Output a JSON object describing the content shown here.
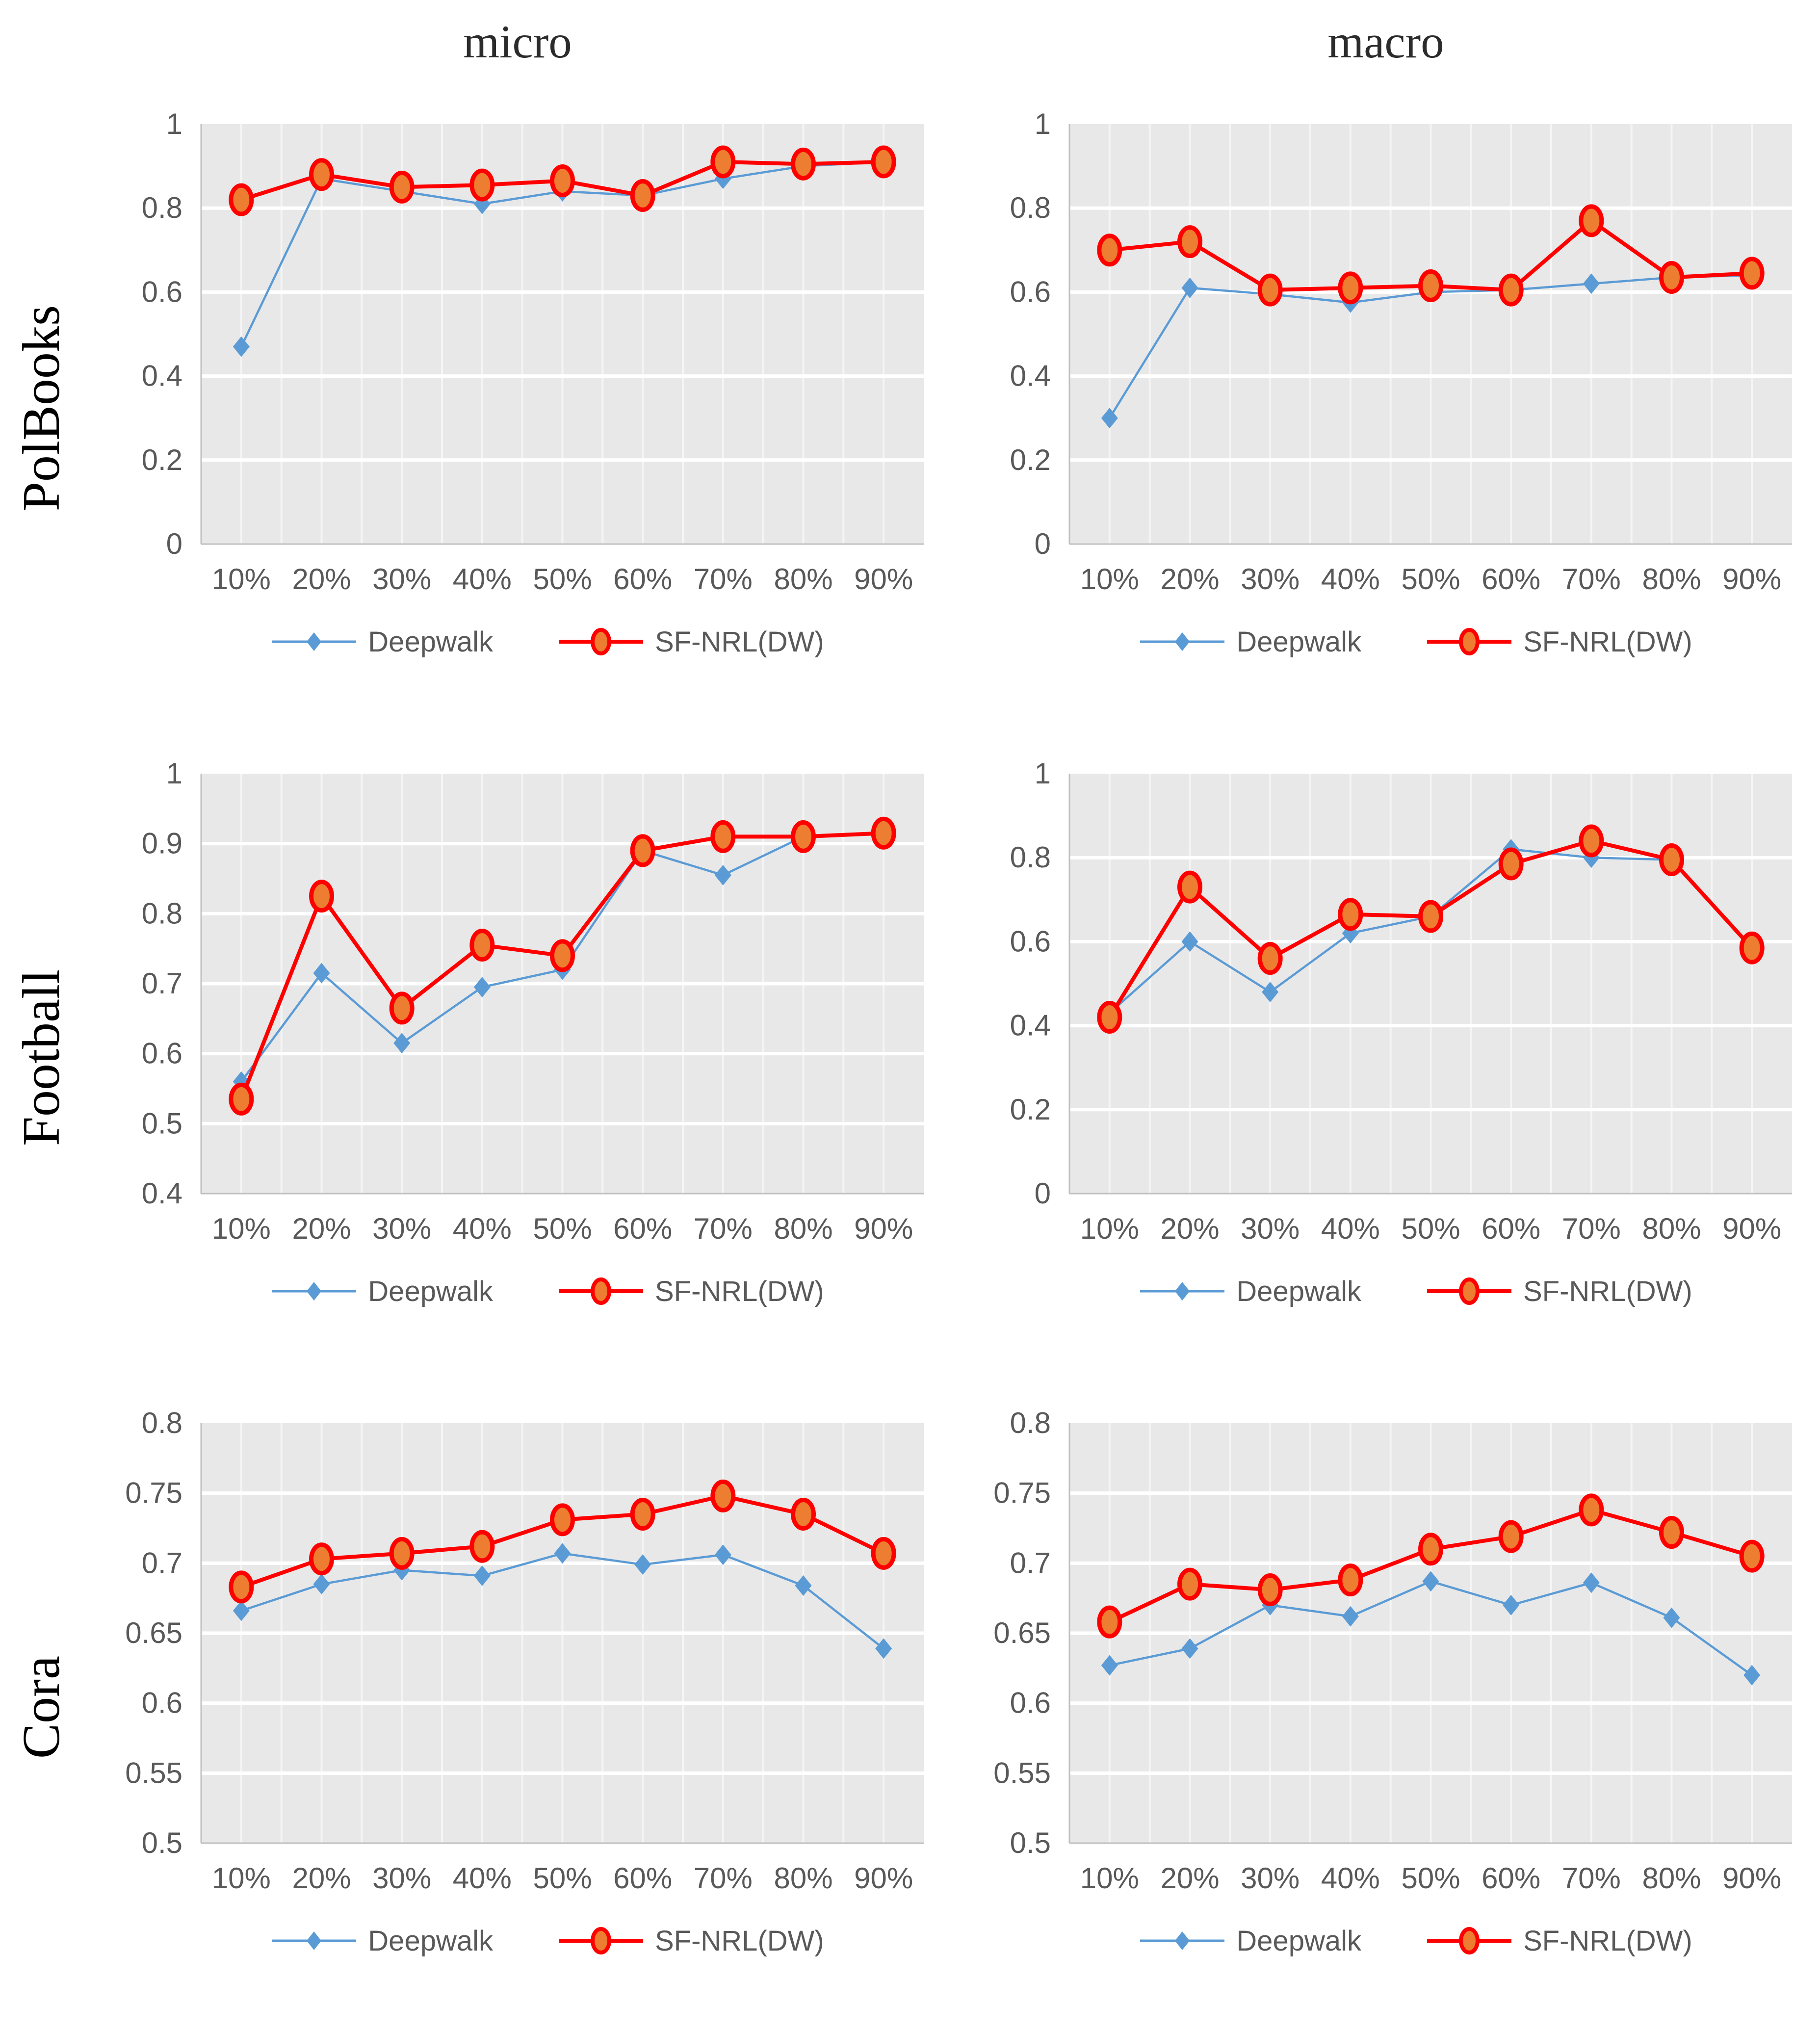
{
  "page": {
    "column_titles": [
      "micro",
      "macro"
    ],
    "row_labels": [
      "PolBooks",
      "Football",
      "Cora"
    ]
  },
  "colors": {
    "plot_bg": "#e8e8e8",
    "vgrid": "#f5f5f5",
    "hgrid": "#ffffff",
    "axis": "#c0c0c0",
    "tick": "#595959",
    "deepwalk_blue": "#5B9BD5",
    "sfnrl_red": "#FF0000",
    "sfnrl_fill": "#ED7D31"
  },
  "chart_data": [
    {
      "id": "polbooks-micro",
      "type": "line",
      "dataset": "PolBooks",
      "metric": "micro",
      "categories": [
        "10%",
        "20%",
        "30%",
        "40%",
        "50%",
        "60%",
        "70%",
        "80%",
        "90%"
      ],
      "ylim": [
        0,
        1
      ],
      "yticks": [
        1,
        0.8,
        0.6,
        0.4,
        0.2,
        0
      ],
      "ytick_labels": [
        "1",
        "0.8",
        "0.6",
        "0.4",
        "0.2",
        "0"
      ],
      "grid": "on",
      "legend_position": "bottom",
      "series": [
        {
          "name": "Deepwalk",
          "marker": "diamond",
          "color": "#5B9BD5",
          "values": [
            0.47,
            0.87,
            0.84,
            0.81,
            0.84,
            0.83,
            0.87,
            0.9,
            0.91
          ]
        },
        {
          "name": "SF-NRL(DW)",
          "marker": "circle",
          "color": "#FF0000",
          "fill": "#ED7D31",
          "values": [
            0.82,
            0.88,
            0.85,
            0.855,
            0.865,
            0.83,
            0.91,
            0.905,
            0.91
          ]
        }
      ]
    },
    {
      "id": "polbooks-macro",
      "type": "line",
      "dataset": "PolBooks",
      "metric": "macro",
      "categories": [
        "10%",
        "20%",
        "30%",
        "40%",
        "50%",
        "60%",
        "70%",
        "80%",
        "90%"
      ],
      "ylim": [
        0,
        1
      ],
      "yticks": [
        1,
        0.8,
        0.6,
        0.4,
        0.2,
        0
      ],
      "ytick_labels": [
        "1",
        "0.8",
        "0.6",
        "0.4",
        "0.2",
        "0"
      ],
      "grid": "on",
      "legend_position": "bottom",
      "series": [
        {
          "name": "Deepwalk",
          "marker": "diamond",
          "color": "#5B9BD5",
          "values": [
            0.3,
            0.61,
            0.595,
            0.575,
            0.6,
            0.605,
            0.62,
            0.635,
            0.64
          ]
        },
        {
          "name": "SF-NRL(DW)",
          "marker": "circle",
          "color": "#FF0000",
          "fill": "#ED7D31",
          "values": [
            0.7,
            0.72,
            0.605,
            0.61,
            0.615,
            0.605,
            0.77,
            0.635,
            0.645
          ]
        }
      ]
    },
    {
      "id": "football-micro",
      "type": "line",
      "dataset": "Football",
      "metric": "micro",
      "categories": [
        "10%",
        "20%",
        "30%",
        "40%",
        "50%",
        "60%",
        "70%",
        "80%",
        "90%"
      ],
      "ylim": [
        0.4,
        1
      ],
      "yticks": [
        1,
        0.9,
        0.8,
        0.7,
        0.6,
        0.5,
        0.4
      ],
      "ytick_labels": [
        "1",
        "0.9",
        "0.8",
        "0.7",
        "0.6",
        "0.5",
        "0.4"
      ],
      "grid": "on",
      "legend_position": "bottom",
      "series": [
        {
          "name": "Deepwalk",
          "marker": "diamond",
          "color": "#5B9BD5",
          "values": [
            0.56,
            0.715,
            0.615,
            0.695,
            0.72,
            0.89,
            0.855,
            0.91,
            0.915
          ]
        },
        {
          "name": "SF-NRL(DW)",
          "marker": "circle",
          "color": "#FF0000",
          "fill": "#ED7D31",
          "values": [
            0.535,
            0.825,
            0.665,
            0.755,
            0.74,
            0.89,
            0.91,
            0.91,
            0.915
          ]
        }
      ]
    },
    {
      "id": "football-macro",
      "type": "line",
      "dataset": "Football",
      "metric": "macro",
      "categories": [
        "10%",
        "20%",
        "30%",
        "40%",
        "50%",
        "60%",
        "70%",
        "80%",
        "90%"
      ],
      "ylim": [
        0,
        1
      ],
      "yticks": [
        1,
        0.8,
        0.6,
        0.4,
        0.2,
        0
      ],
      "ytick_labels": [
        "1",
        "0.8",
        "0.6",
        "0.4",
        "0.2",
        "0"
      ],
      "grid": "on",
      "legend_position": "bottom",
      "series": [
        {
          "name": "Deepwalk",
          "marker": "diamond",
          "color": "#5B9BD5",
          "values": [
            0.43,
            0.6,
            0.48,
            0.62,
            0.66,
            0.82,
            0.8,
            0.795,
            0.585
          ]
        },
        {
          "name": "SF-NRL(DW)",
          "marker": "circle",
          "color": "#FF0000",
          "fill": "#ED7D31",
          "values": [
            0.42,
            0.73,
            0.56,
            0.665,
            0.66,
            0.785,
            0.84,
            0.795,
            0.585
          ]
        }
      ]
    },
    {
      "id": "cora-micro",
      "type": "line",
      "dataset": "Cora",
      "metric": "micro",
      "categories": [
        "10%",
        "20%",
        "30%",
        "40%",
        "50%",
        "60%",
        "70%",
        "80%",
        "90%"
      ],
      "ylim": [
        0.5,
        0.8
      ],
      "yticks": [
        0.8,
        0.75,
        0.7,
        0.65,
        0.6,
        0.55,
        0.5
      ],
      "ytick_labels": [
        "0.8",
        "0.75",
        "0.7",
        "0.65",
        "0.6",
        "0.55",
        "0.5"
      ],
      "grid": "on",
      "legend_position": "bottom",
      "series": [
        {
          "name": "Deepwalk",
          "marker": "diamond",
          "color": "#5B9BD5",
          "values": [
            0.666,
            0.685,
            0.695,
            0.691,
            0.707,
            0.699,
            0.706,
            0.684,
            0.639
          ]
        },
        {
          "name": "SF-NRL(DW)",
          "marker": "circle",
          "color": "#FF0000",
          "fill": "#ED7D31",
          "values": [
            0.683,
            0.703,
            0.707,
            0.712,
            0.731,
            0.735,
            0.748,
            0.735,
            0.707
          ]
        }
      ]
    },
    {
      "id": "cora-macro",
      "type": "line",
      "dataset": "Cora",
      "metric": "macro",
      "categories": [
        "10%",
        "20%",
        "30%",
        "40%",
        "50%",
        "60%",
        "70%",
        "80%",
        "90%"
      ],
      "ylim": [
        0.5,
        0.8
      ],
      "yticks": [
        0.8,
        0.75,
        0.7,
        0.65,
        0.6,
        0.55,
        0.5
      ],
      "ytick_labels": [
        "0.8",
        "0.75",
        "0.7",
        "0.65",
        "0.6",
        "0.55",
        "0.5"
      ],
      "grid": "on",
      "legend_position": "bottom",
      "series": [
        {
          "name": "Deepwalk",
          "marker": "diamond",
          "color": "#5B9BD5",
          "values": [
            0.627,
            0.639,
            0.67,
            0.662,
            0.687,
            0.67,
            0.686,
            0.661,
            0.62
          ]
        },
        {
          "name": "SF-NRL(DW)",
          "marker": "circle",
          "color": "#FF0000",
          "fill": "#ED7D31",
          "values": [
            0.658,
            0.685,
            0.681,
            0.688,
            0.71,
            0.719,
            0.738,
            0.722,
            0.705
          ]
        }
      ]
    }
  ]
}
